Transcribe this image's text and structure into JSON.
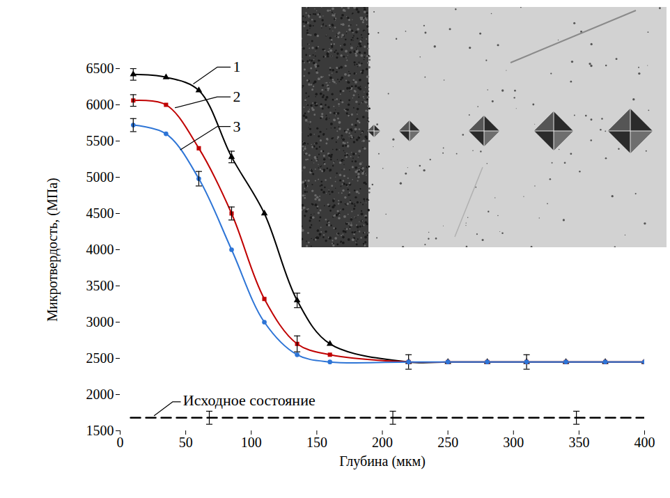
{
  "chart_data": {
    "type": "line",
    "x_label": "Глубина (мкм)",
    "y_label": "Микротвердость, (МПа)",
    "xlim": [
      0,
      400
    ],
    "xticks": [
      0,
      50,
      100,
      150,
      200,
      250,
      300,
      350,
      400
    ],
    "ylim": [
      1500,
      6500
    ],
    "yticks": [
      1500,
      2000,
      2500,
      3000,
      3500,
      4000,
      4500,
      5000,
      5500,
      6000,
      6500
    ],
    "grid": false,
    "series": [
      {
        "name": "1",
        "color": "#000000",
        "marker": "triangle",
        "line_style": "solid",
        "x": [
          10,
          35,
          60,
          85,
          110,
          135,
          160,
          220,
          250,
          280,
          310,
          340,
          370,
          400
        ],
        "values": [
          6420,
          6380,
          6200,
          5280,
          4500,
          3300,
          2700,
          2450,
          2450,
          2450,
          2450,
          2450,
          2450,
          2450
        ],
        "errors": [
          80,
          null,
          null,
          80,
          null,
          100,
          null,
          100,
          null,
          null,
          100,
          null,
          null,
          null
        ]
      },
      {
        "name": "2",
        "color": "#c00000",
        "marker": "square",
        "line_style": "solid",
        "x": [
          10,
          35,
          60,
          85,
          110,
          135,
          160,
          220,
          250,
          280,
          310,
          340,
          370,
          400
        ],
        "values": [
          6060,
          6000,
          5400,
          4500,
          3320,
          2700,
          2550,
          2450,
          2450,
          2450,
          2450,
          2450,
          2450,
          2450
        ],
        "errors": [
          80,
          null,
          null,
          90,
          null,
          110,
          null,
          null,
          null,
          null,
          null,
          null,
          null,
          null
        ]
      },
      {
        "name": "3",
        "color": "#2e75d6",
        "marker": "circle",
        "line_style": "solid",
        "x": [
          10,
          35,
          60,
          85,
          110,
          135,
          160,
          220,
          250,
          280,
          310,
          340,
          370,
          400
        ],
        "values": [
          5720,
          5600,
          4980,
          4000,
          3000,
          2550,
          2450,
          2450,
          2450,
          2450,
          2450,
          2450,
          2450,
          2450
        ],
        "errors": [
          90,
          null,
          100,
          null,
          null,
          null,
          null,
          null,
          null,
          null,
          null,
          null,
          null,
          null
        ]
      },
      {
        "name": "Исходное состояние",
        "color": "#000000",
        "marker": "none",
        "line_style": "dashed",
        "x": [
          8,
          68,
          208,
          348,
          400
        ],
        "values": [
          1680,
          1680,
          1680,
          1680,
          1680
        ],
        "errors": [
          null,
          90,
          90,
          90,
          null
        ]
      }
    ]
  }
}
